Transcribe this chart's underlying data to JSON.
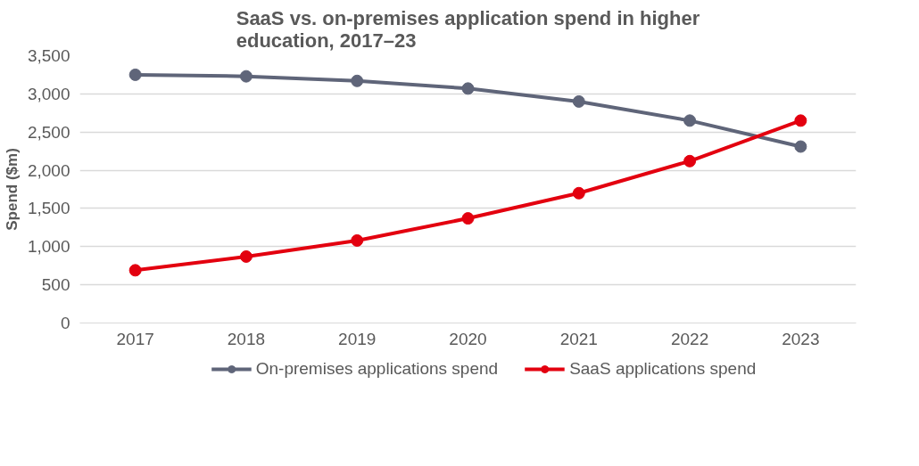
{
  "chart_data": {
    "type": "line",
    "title": "SaaS vs. on-premises application spend in higher education, 2017–23",
    "ylabel": "Spend ($m)",
    "categories": [
      "2017",
      "2018",
      "2019",
      "2020",
      "2021",
      "2022",
      "2023"
    ],
    "series": [
      {
        "name": "On-premises applications spend",
        "color": "#5f6579",
        "values": [
          3250,
          3230,
          3170,
          3070,
          2900,
          2650,
          2310
        ]
      },
      {
        "name": "SaaS applications spend",
        "color": "#e3000f",
        "values": [
          690,
          870,
          1080,
          1370,
          1700,
          2120,
          2650
        ]
      }
    ],
    "ylim": [
      0,
      3500
    ],
    "yticks": [
      0,
      500,
      {
        "value": 1000,
        "label": "1,000"
      },
      {
        "value": 1500,
        "label": "1,500"
      },
      {
        "value": 2000,
        "label": "2,000"
      },
      {
        "value": 2500,
        "label": "2,500"
      },
      {
        "value": 3000,
        "label": "3,000"
      },
      {
        "value": 3500,
        "label": "3,500"
      }
    ],
    "grid": "y",
    "legend": "bottom",
    "marker": "circle",
    "line_style": "solid"
  }
}
